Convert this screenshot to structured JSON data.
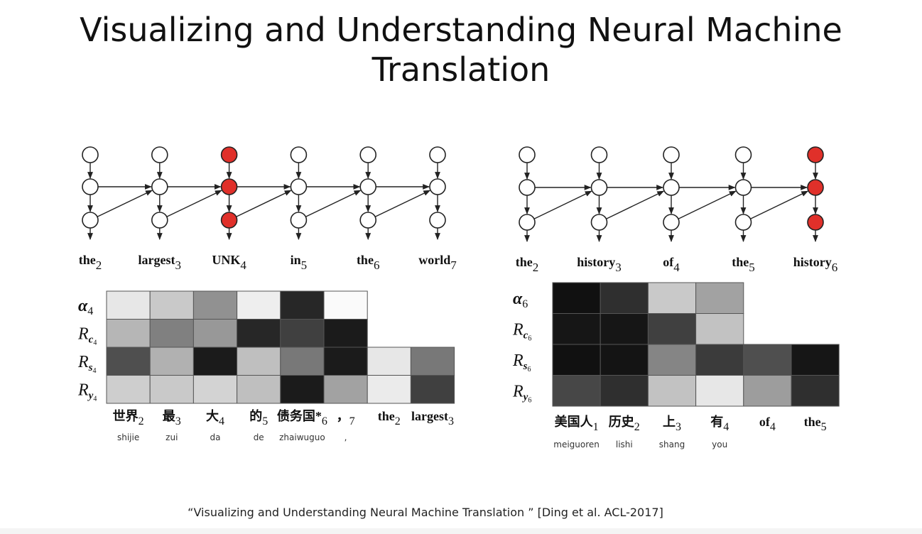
{
  "title": {
    "line1": "Visualizing and Understanding Neural Machine",
    "line2": "Translation"
  },
  "citation": "“Visualizing and Understanding Neural Machine Translation ”  [Ding et al. ACL-2017]",
  "colors": {
    "highlight_node": "#e0302a",
    "node_stroke": "#222222",
    "text": "#111111"
  },
  "left_panel": {
    "nodes_highlighted_column": 2,
    "target_words": [
      {
        "word": "the",
        "sub": "2"
      },
      {
        "word": "largest",
        "sub": "3"
      },
      {
        "word": "UNK",
        "sub": "4"
      },
      {
        "word": "in",
        "sub": "5"
      },
      {
        "word": "the",
        "sub": "6"
      },
      {
        "word": "world",
        "sub": "7"
      }
    ],
    "row_labels": [
      {
        "base": "α",
        "sub": "4",
        "style": "bold-greek"
      },
      {
        "base": "R",
        "sub": "c",
        "subsub": "4",
        "style": "italic"
      },
      {
        "base": "R",
        "sub": "s",
        "subsub": "4",
        "style": "italic"
      },
      {
        "base": "R",
        "sub": "y",
        "subsub": "4",
        "style": "italic"
      }
    ],
    "heatmap": [
      [
        0.1,
        0.22,
        0.45,
        0.07,
        0.88,
        0.02
      ],
      [
        0.3,
        0.52,
        0.42,
        0.88,
        0.78,
        0.93,
        null,
        null
      ],
      [
        0.72,
        0.32,
        0.93,
        0.26,
        0.55,
        0.93,
        0.1,
        0.55
      ],
      [
        0.2,
        0.22,
        0.18,
        0.26,
        0.93,
        0.38,
        0.08,
        0.78
      ]
    ],
    "source_words": [
      {
        "word": "世界",
        "sub": "2",
        "pinyin": "shijie"
      },
      {
        "word": "最",
        "sub": "3",
        "pinyin": "zui"
      },
      {
        "word": "大",
        "sub": "4",
        "pinyin": "da"
      },
      {
        "word": "的",
        "sub": "5",
        "pinyin": "de"
      },
      {
        "word": "债务国",
        "sub": "6",
        "pinyin": "zhaiwuguo",
        "star": "*"
      },
      {
        "word": "，",
        "sub": "7",
        "pinyin": ","
      },
      {
        "word": "the",
        "sub": "2",
        "pinyin": ""
      },
      {
        "word": "largest",
        "sub": "3",
        "pinyin": ""
      }
    ]
  },
  "right_panel": {
    "nodes_highlighted_column": 4,
    "target_words": [
      {
        "word": "the",
        "sub": "2"
      },
      {
        "word": "history",
        "sub": "3"
      },
      {
        "word": "of",
        "sub": "4"
      },
      {
        "word": "the",
        "sub": "5"
      },
      {
        "word": "history",
        "sub": "6"
      }
    ],
    "row_labels": [
      {
        "base": "α",
        "sub": "6",
        "style": "bold-greek"
      },
      {
        "base": "R",
        "sub": "c",
        "subsub": "6",
        "style": "italic"
      },
      {
        "base": "R",
        "sub": "s",
        "subsub": "6",
        "style": "italic"
      },
      {
        "base": "R",
        "sub": "y",
        "subsub": "6",
        "style": "italic"
      }
    ],
    "heatmap": [
      [
        0.97,
        0.85,
        0.22,
        0.38
      ],
      [
        0.95,
        0.95,
        0.78,
        0.25
      ],
      [
        0.97,
        0.96,
        0.5,
        0.8,
        0.72,
        0.95
      ],
      [
        0.75,
        0.85,
        0.25,
        0.1,
        0.4,
        0.85
      ]
    ],
    "source_words": [
      {
        "word": "美国人",
        "sub": "1",
        "pinyin": "meiguoren"
      },
      {
        "word": "历史",
        "sub": "2",
        "pinyin": "lishi"
      },
      {
        "word": "上",
        "sub": "3",
        "pinyin": "shang"
      },
      {
        "word": "有",
        "sub": "4",
        "pinyin": "you"
      },
      {
        "word": "of",
        "sub": "4",
        "pinyin": ""
      },
      {
        "word": "the",
        "sub": "5",
        "pinyin": ""
      }
    ]
  }
}
